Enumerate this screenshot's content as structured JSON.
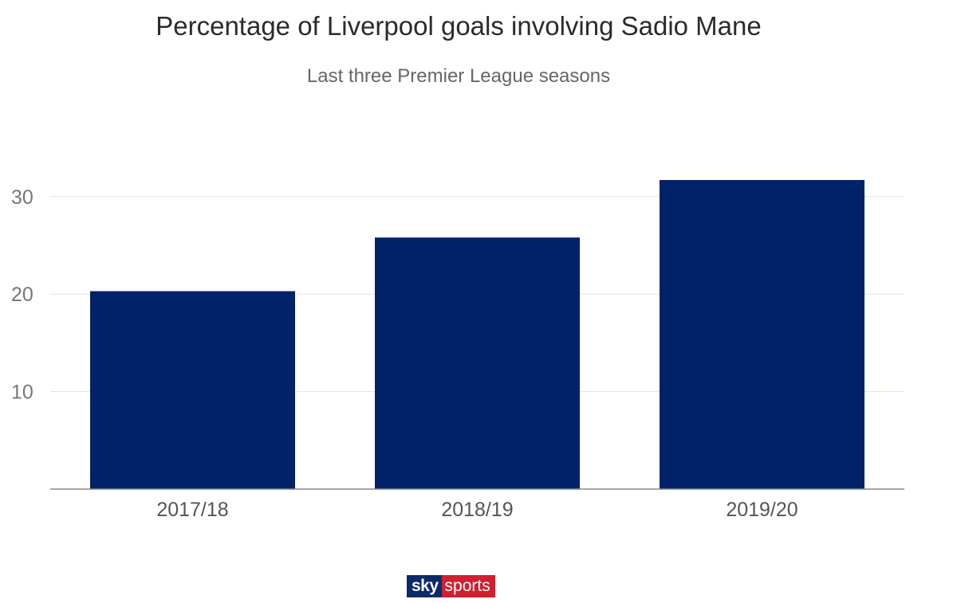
{
  "chart_data": {
    "type": "bar",
    "title": "Percentage of Liverpool goals involving Sadio Mane",
    "subtitle": "Last three Premier League seasons",
    "xlabel": "",
    "ylabel": "",
    "categories": [
      "2017/18",
      "2018/19",
      "2019/20"
    ],
    "values": [
      20.3,
      25.8,
      31.7
    ],
    "ylim": [
      0,
      33
    ],
    "yticks": [
      10,
      20,
      30
    ],
    "bar_color": "#012169",
    "grid": true,
    "legend": "none"
  },
  "logo": {
    "sky": "sky",
    "sports": "sports"
  }
}
